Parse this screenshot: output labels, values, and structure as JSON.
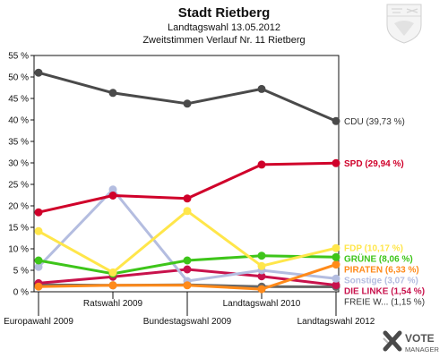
{
  "header": {
    "title": "Stadt Rietberg",
    "subtitle1": "Landtagswahl 13.05.2012",
    "subtitle2": "Zweitstimmen Verlauf Nr. 11 Rietberg"
  },
  "logo": {
    "line1": "VOTE",
    "line2": "MANAGER"
  },
  "chart_data": {
    "type": "line",
    "x": [
      "Europawahl 2009",
      "Ratswahl 2009",
      "Bundestagswahl 2009",
      "Landtagswahl 2010",
      "Landtagswahl 2012"
    ],
    "ylim": [
      0,
      55
    ],
    "ytick_step": 5,
    "ytick_suffix": " %",
    "grid": false,
    "series": [
      {
        "name": "CDU",
        "color": "#4a4a4a",
        "values": [
          51.0,
          46.3,
          43.8,
          47.2,
          39.73
        ],
        "label": "CDU (39,73 %)"
      },
      {
        "name": "SPD",
        "color": "#d0002a",
        "values": [
          18.5,
          22.4,
          21.7,
          29.6,
          29.94
        ],
        "label": "SPD (29,94 %)"
      },
      {
        "name": "FDP",
        "color": "#ffe64a",
        "values": [
          14.1,
          4.5,
          18.8,
          6.0,
          10.17
        ],
        "label": "FDP (10,17 %)"
      },
      {
        "name": "GRÜNE",
        "color": "#3ec51a",
        "values": [
          7.3,
          4.2,
          7.3,
          8.4,
          8.06
        ],
        "label": "GRÜNE (8,06 %)"
      },
      {
        "name": "PIRATEN",
        "color": "#ff8a1a",
        "values": [
          1.2,
          1.5,
          1.5,
          0.6,
          6.33
        ],
        "label": "PIRATEN (6,33 %)"
      },
      {
        "name": "Sonstige",
        "color": "#b4bde0",
        "values": [
          5.8,
          23.8,
          2.5,
          5.0,
          3.07
        ],
        "label": "Sonstige (3,07 %)"
      },
      {
        "name": "DIE LINKE",
        "color": "#c8124c",
        "values": [
          2.0,
          3.5,
          5.2,
          3.6,
          1.54
        ],
        "label": "DIE LINKE (1,54 %)"
      },
      {
        "name": "FREIE W...",
        "color": "#666666",
        "values": [
          1.6,
          1.5,
          1.6,
          1.2,
          1.15
        ],
        "label": "FREIE W... (1,15 %)"
      }
    ]
  }
}
